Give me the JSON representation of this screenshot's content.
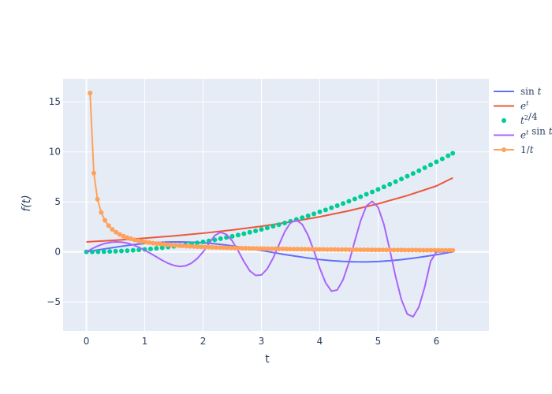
{
  "chart_data": {
    "type": "line",
    "xlabel": "t",
    "ylabel": "f(t)",
    "xlim": [
      -0.4,
      6.9
    ],
    "ylim": [
      -7.9,
      17.3
    ],
    "x_ticks": [
      0,
      1,
      2,
      3,
      4,
      5,
      6
    ],
    "x_tick_labels": [
      "0",
      "1",
      "2",
      "3",
      "4",
      "5",
      "6"
    ],
    "y_ticks": [
      -5,
      0,
      5,
      10,
      15
    ],
    "y_tick_labels": [
      "−5",
      "0",
      "5",
      "10",
      "15"
    ],
    "grid": true,
    "legend_position": "right",
    "plot_bg": "#e5ecf6",
    "series": [
      {
        "name": "sin t",
        "mode": "lines",
        "color": "#636efa",
        "x": [
          0,
          0.2,
          0.4,
          0.6,
          0.8,
          1.0,
          1.2,
          1.4,
          1.6,
          1.8,
          2.0,
          2.2,
          2.4,
          2.6,
          2.8,
          3.0,
          3.2,
          3.4,
          3.6,
          3.8,
          4.0,
          4.2,
          4.4,
          4.6,
          4.8,
          5.0,
          5.2,
          5.4,
          5.6,
          5.8,
          6.0,
          6.2,
          6.28
        ],
        "y": [
          0,
          0.2,
          0.38,
          0.56,
          0.72,
          0.84,
          0.93,
          0.99,
          1.0,
          0.97,
          0.91,
          0.81,
          0.68,
          0.52,
          0.33,
          0.14,
          -0.06,
          -0.26,
          -0.44,
          -0.61,
          -0.76,
          -0.87,
          -0.95,
          -0.99,
          -1.0,
          -0.96,
          -0.88,
          -0.77,
          -0.63,
          -0.46,
          -0.28,
          -0.08,
          0
        ]
      },
      {
        "name": "e^t",
        "mode": "lines",
        "color": "#ef553b",
        "x": [
          0,
          0.5,
          1.0,
          1.5,
          2.0,
          2.5,
          3.0,
          3.5,
          4.0,
          4.5,
          5.0,
          5.5,
          6.0,
          6.28
        ],
        "y": [
          1.0,
          1.17,
          1.37,
          1.6,
          1.87,
          2.19,
          2.56,
          3.0,
          3.51,
          4.11,
          4.81,
          5.63,
          6.59,
          7.4
        ]
      },
      {
        "name": "t^2/4",
        "mode": "markers",
        "color": "#00cc96",
        "x": [
          0,
          0.1,
          0.2,
          0.3,
          0.4,
          0.5,
          0.6,
          0.7,
          0.8,
          0.9,
          1.0,
          1.1,
          1.2,
          1.3,
          1.4,
          1.5,
          1.6,
          1.7,
          1.8,
          1.9,
          2.0,
          2.1,
          2.2,
          2.3,
          2.4,
          2.5,
          2.6,
          2.7,
          2.8,
          2.9,
          3.0,
          3.1,
          3.2,
          3.3,
          3.4,
          3.5,
          3.6,
          3.7,
          3.8,
          3.9,
          4.0,
          4.1,
          4.2,
          4.3,
          4.4,
          4.5,
          4.6,
          4.7,
          4.8,
          4.9,
          5.0,
          5.1,
          5.2,
          5.3,
          5.4,
          5.5,
          5.6,
          5.7,
          5.8,
          5.9,
          6.0,
          6.1,
          6.2,
          6.28
        ],
        "y": [
          0,
          0.0,
          0.01,
          0.02,
          0.04,
          0.06,
          0.09,
          0.12,
          0.16,
          0.2,
          0.25,
          0.3,
          0.36,
          0.42,
          0.49,
          0.56,
          0.64,
          0.72,
          0.81,
          0.9,
          1.0,
          1.1,
          1.21,
          1.32,
          1.44,
          1.56,
          1.69,
          1.82,
          1.96,
          2.1,
          2.25,
          2.4,
          2.56,
          2.72,
          2.89,
          3.06,
          3.24,
          3.42,
          3.61,
          3.8,
          4.0,
          4.2,
          4.41,
          4.62,
          4.84,
          5.06,
          5.29,
          5.52,
          5.76,
          6.0,
          6.25,
          6.5,
          6.76,
          7.02,
          7.29,
          7.56,
          7.84,
          8.12,
          8.41,
          8.7,
          9.0,
          9.3,
          9.61,
          9.86
        ]
      },
      {
        "name": "e^t sin t",
        "mode": "lines",
        "color": "#ab63fa",
        "x": [
          0,
          0.1,
          0.2,
          0.3,
          0.4,
          0.5,
          0.6,
          0.7,
          0.8,
          0.9,
          1.0,
          1.1,
          1.2,
          1.3,
          1.4,
          1.5,
          1.6,
          1.7,
          1.8,
          1.9,
          2.0,
          2.1,
          2.2,
          2.3,
          2.4,
          2.5,
          2.6,
          2.7,
          2.8,
          2.9,
          3.0,
          3.1,
          3.2,
          3.3,
          3.4,
          3.5,
          3.6,
          3.7,
          3.8,
          3.9,
          4.0,
          4.1,
          4.2,
          4.3,
          4.4,
          4.5,
          4.6,
          4.7,
          4.8,
          4.9,
          5.0,
          5.1,
          5.2,
          5.3,
          5.4,
          5.5,
          5.6,
          5.7,
          5.8,
          5.9,
          6.0,
          6.1,
          6.2,
          6.28
        ],
        "y": [
          0,
          0.33,
          0.61,
          0.82,
          0.95,
          1.0,
          0.98,
          0.88,
          0.7,
          0.46,
          0.17,
          -0.15,
          -0.5,
          -0.84,
          -1.14,
          -1.35,
          -1.45,
          -1.39,
          -1.13,
          -0.66,
          0.0,
          0.82,
          1.64,
          1.96,
          1.75,
          1.1,
          0.12,
          -0.96,
          -1.89,
          -2.35,
          -2.3,
          -1.69,
          -0.62,
          0.7,
          2.02,
          2.93,
          3.18,
          2.75,
          1.66,
          0.1,
          -1.62,
          -3.08,
          -3.92,
          -3.8,
          -2.78,
          -1.06,
          1.07,
          3.1,
          4.6,
          5.05,
          4.46,
          2.75,
          0.23,
          -2.46,
          -4.77,
          -6.21,
          -6.48,
          -5.5,
          -3.5,
          -0.95,
          0.0,
          0.0,
          0.0,
          0.0
        ]
      },
      {
        "name": "1/t",
        "mode": "lines+markers",
        "color": "#ffa15a",
        "x": [
          0.063,
          0.127,
          0.19,
          0.254,
          0.317,
          0.381,
          0.444,
          0.508,
          0.571,
          0.635,
          0.698,
          0.762,
          0.825,
          0.889,
          0.952,
          1.016,
          1.079,
          1.143,
          1.206,
          1.27,
          1.333,
          1.397,
          1.46,
          1.524,
          1.587,
          1.651,
          1.714,
          1.778,
          1.841,
          1.905,
          1.968,
          2.032,
          2.095,
          2.159,
          2.222,
          2.286,
          2.349,
          2.413,
          2.476,
          2.54,
          2.603,
          2.667,
          2.73,
          2.794,
          2.857,
          2.921,
          2.984,
          3.048,
          3.111,
          3.175,
          3.238,
          3.302,
          3.365,
          3.429,
          3.492,
          3.556,
          3.619,
          3.683,
          3.746,
          3.81,
          3.873,
          3.937,
          4.0,
          4.063,
          4.127,
          4.19,
          4.254,
          4.317,
          4.381,
          4.444,
          4.508,
          4.571,
          4.635,
          4.698,
          4.762,
          4.825,
          4.889,
          4.952,
          5.016,
          5.079,
          5.143,
          5.206,
          5.27,
          5.333,
          5.397,
          5.46,
          5.524,
          5.587,
          5.651,
          5.714,
          5.778,
          5.841,
          5.905,
          5.968,
          6.032,
          6.095,
          6.159,
          6.222,
          6.28
        ],
        "y": [
          15.87,
          7.87,
          5.26,
          3.94,
          3.15,
          2.62,
          2.25,
          1.97,
          1.75,
          1.57,
          1.43,
          1.31,
          1.21,
          1.12,
          1.05,
          0.98,
          0.93,
          0.87,
          0.83,
          0.79,
          0.75,
          0.72,
          0.68,
          0.66,
          0.63,
          0.61,
          0.58,
          0.56,
          0.54,
          0.52,
          0.51,
          0.49,
          0.48,
          0.46,
          0.45,
          0.44,
          0.43,
          0.41,
          0.4,
          0.39,
          0.38,
          0.37,
          0.37,
          0.36,
          0.35,
          0.34,
          0.34,
          0.33,
          0.32,
          0.31,
          0.31,
          0.3,
          0.3,
          0.29,
          0.29,
          0.28,
          0.28,
          0.27,
          0.27,
          0.26,
          0.26,
          0.25,
          0.25,
          0.25,
          0.24,
          0.24,
          0.24,
          0.23,
          0.23,
          0.23,
          0.22,
          0.22,
          0.22,
          0.21,
          0.21,
          0.21,
          0.2,
          0.2,
          0.2,
          0.2,
          0.19,
          0.19,
          0.19,
          0.19,
          0.19,
          0.18,
          0.18,
          0.18,
          0.18,
          0.17,
          0.17,
          0.17,
          0.17,
          0.17,
          0.17,
          0.16,
          0.16,
          0.16,
          0.16
        ]
      }
    ]
  }
}
